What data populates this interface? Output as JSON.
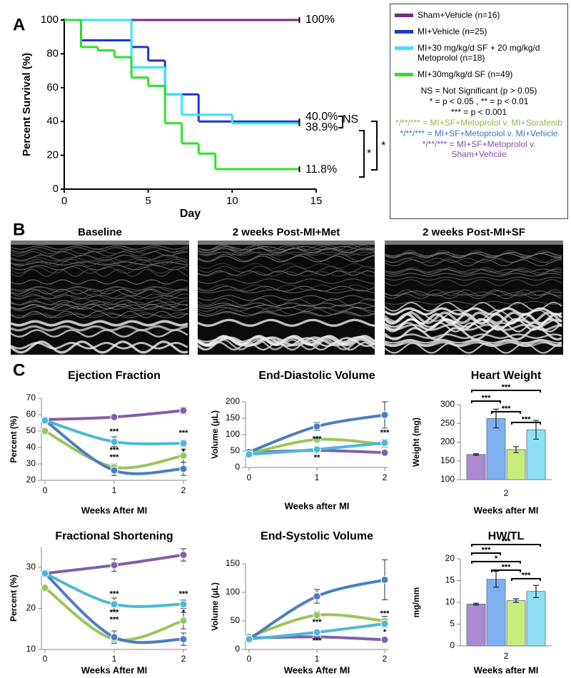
{
  "panel_labels": [
    "A",
    "B",
    "C"
  ],
  "echo_titles": [
    "Baseline",
    "2 weeks Post-MI+Met",
    "2 weeks Post-MI+SF"
  ],
  "legend": {
    "notes": [
      {
        "text": "NS = Not Significant (p > 0.05)",
        "color": "#000000"
      },
      {
        "text": "* = p < 0.05 , ** = p < 0.01",
        "color": "#000000"
      },
      {
        "text": "*** = p < 0.001",
        "color": "#000000"
      },
      {
        "text": "*/**/*** = MI+SF+Metoprolol v. MI+Sorafenib",
        "color": "#8ab84a"
      },
      {
        "text": "*/**/*** = MI+SF+Metoprolol v. MI+Vehicle",
        "color": "#3f73b8"
      },
      {
        "text": "*/**/*** = MI+SF+Metoprolol v. Sham+Vehcile",
        "color": "#7b4fa0"
      }
    ]
  },
  "chart_data": [
    {
      "type": "line",
      "step": "post",
      "xlabel": "Day",
      "ylabel": "Percent Survival (%)",
      "xlim": [
        0,
        15
      ],
      "xticks": [
        0,
        5,
        10,
        15
      ],
      "ylim": [
        0,
        100
      ],
      "yticks": [
        0,
        20,
        40,
        60,
        80,
        100
      ],
      "series": [
        {
          "name": "Sham+Vehicle (n=16)",
          "color": "#7a2a86",
          "x": [
            0,
            14
          ],
          "values": [
            100,
            100
          ]
        },
        {
          "name": "MI+Vehicle (n=25)",
          "color": "#1f35c8",
          "x": [
            0,
            1,
            4,
            5,
            6,
            8,
            14
          ],
          "values": [
            100,
            88,
            84,
            76,
            56,
            40,
            40
          ]
        },
        {
          "name": "MI+30 mg/kg/d SF + 20 mg/kg/d Metoprolol (n=18)",
          "color": "#33e6f5",
          "x": [
            0,
            4,
            6,
            7,
            10,
            14
          ],
          "values": [
            100,
            72,
            56,
            44,
            38.9,
            38.9
          ]
        },
        {
          "name": "MI+30mg/kg/d SF (n=49)",
          "color": "#2ee02e",
          "x": [
            0,
            1,
            2,
            3,
            4,
            5,
            6,
            7,
            8,
            9,
            14
          ],
          "values": [
            100,
            84,
            82,
            78,
            66,
            61,
            39,
            27,
            21,
            11.8,
            11.8
          ]
        }
      ],
      "annotations": [
        "100%",
        "40.0%",
        "38.9%",
        "11.8%",
        "NS",
        "*",
        "*"
      ]
    },
    {
      "type": "line",
      "title": "Ejection Fraction",
      "xlabel": "Weeks After MI",
      "ylabel": "Percent (%)",
      "x": [
        0,
        1,
        2
      ],
      "xlim": [
        0,
        2
      ],
      "xticks": [
        0,
        1,
        2
      ],
      "ylim": [
        20,
        70
      ],
      "yticks": [
        20,
        30,
        40,
        50,
        60,
        70
      ],
      "series": [
        {
          "color": "#8060a8",
          "values": [
            57,
            58.5,
            62.5
          ],
          "errors": [
            1,
            1.5,
            2
          ]
        },
        {
          "color": "#4a7ec0",
          "values": [
            56.5,
            26,
            27
          ],
          "errors": [
            1,
            3,
            4
          ]
        },
        {
          "color": "#4cb8d8",
          "values": [
            56.5,
            43.5,
            42.5
          ],
          "errors": [
            1,
            3,
            2
          ]
        },
        {
          "color": "#9cc45a",
          "values": [
            50,
            28,
            35
          ],
          "errors": [
            1,
            2,
            4
          ]
        }
      ],
      "significance": [
        {
          "x": 1,
          "stars": [
            {
              "label": "***",
              "color": "#7b4fa0"
            },
            {
              "label": "***",
              "color": "#8ab84a"
            },
            {
              "label": "***",
              "color": "#3f73b8"
            }
          ]
        },
        {
          "x": 2,
          "stars": [
            {
              "label": "***",
              "color": "#7b4fa0"
            },
            {
              "label": "*",
              "color": "#3f73b8"
            }
          ]
        }
      ]
    },
    {
      "type": "line",
      "title": "End-Diastolic Volume",
      "xlabel": "Weeks after MI",
      "ylabel": "Volume (µL)",
      "x": [
        0,
        1,
        2
      ],
      "xlim": [
        0,
        2
      ],
      "xticks": [
        0,
        1,
        2
      ],
      "ylim": [
        0,
        200
      ],
      "yticks": [
        0,
        50,
        100,
        150,
        200
      ],
      "series": [
        {
          "color": "#8060a8",
          "values": [
            45,
            52,
            45
          ],
          "errors": [
            2,
            3,
            3
          ]
        },
        {
          "color": "#4a7ec0",
          "values": [
            47,
            125,
            160
          ],
          "errors": [
            3,
            12,
            40
          ]
        },
        {
          "color": "#4cb8d8",
          "values": [
            40,
            55,
            75
          ],
          "errors": [
            2,
            5,
            10
          ]
        },
        {
          "color": "#9cc45a",
          "values": [
            42,
            85,
            70
          ],
          "errors": [
            2,
            8,
            10
          ]
        }
      ],
      "significance": [
        {
          "x": 1,
          "stars": [
            {
              "label": "***",
              "color": "#7b4fa0"
            },
            {
              "label": "**",
              "color": "#8ab84a"
            }
          ]
        },
        {
          "x": 2,
          "stars": [
            {
              "label": "***",
              "color": "#3f73b8"
            }
          ]
        }
      ]
    },
    {
      "type": "bar",
      "title": "Heart Weight",
      "xlabel": "Weeks after MI",
      "ylabel": "Weight (mg)",
      "categories": [
        "2"
      ],
      "ylim": [
        100,
        300
      ],
      "yticks": [
        100,
        150,
        200,
        250,
        300
      ],
      "series": [
        {
          "color": "#a98ad0",
          "values": [
            167
          ],
          "errors": [
            2
          ]
        },
        {
          "color": "#7fb0f0",
          "values": [
            263
          ],
          "errors": [
            25
          ]
        },
        {
          "color": "#c8ec7a",
          "values": [
            180
          ],
          "errors": [
            8
          ]
        },
        {
          "color": "#8ee0f4",
          "values": [
            233
          ],
          "errors": [
            25
          ]
        }
      ],
      "brackets": [
        {
          "between": [
            0,
            3
          ],
          "label": "***"
        },
        {
          "between": [
            0,
            1
          ],
          "label": "***"
        },
        {
          "between": [
            1,
            2
          ],
          "label": "***"
        },
        {
          "between": [
            2,
            3
          ],
          "label": "***"
        }
      ]
    },
    {
      "type": "line",
      "title": "Fractional Shortening",
      "xlabel": "Weeks After MI",
      "ylabel": "Percent (%)",
      "x": [
        0,
        1,
        2
      ],
      "xlim": [
        0,
        2
      ],
      "xticks": [
        0,
        1,
        2
      ],
      "ylim": [
        10,
        35
      ],
      "yticks": [
        10,
        20,
        30
      ],
      "series": [
        {
          "color": "#8060a8",
          "values": [
            28.5,
            30.5,
            33
          ],
          "errors": [
            0.5,
            1.5,
            1.5
          ]
        },
        {
          "color": "#4a7ec0",
          "values": [
            28.5,
            13,
            12.5
          ],
          "errors": [
            0.5,
            1.5,
            1.5
          ]
        },
        {
          "color": "#4cb8d8",
          "values": [
            28.5,
            21,
            21
          ],
          "errors": [
            0.5,
            1.5,
            1
          ]
        },
        {
          "color": "#9cc45a",
          "values": [
            25,
            12.5,
            17
          ],
          "errors": [
            0.5,
            1,
            2
          ]
        }
      ],
      "significance": [
        {
          "x": 1,
          "stars": [
            {
              "label": "***",
              "color": "#7b4fa0"
            },
            {
              "label": "***",
              "color": "#3f73b8"
            },
            {
              "label": "***",
              "color": "#8ab84a"
            }
          ]
        },
        {
          "x": 2,
          "stars": [
            {
              "label": "***",
              "color": "#7b4fa0"
            },
            {
              "label": "*",
              "color": "#3f73b8"
            }
          ]
        }
      ]
    },
    {
      "type": "line",
      "title": "End-Systolic Volume",
      "xlabel": "Weeks After MI",
      "ylabel": "Volume (µL)",
      "x": [
        0,
        1,
        2
      ],
      "xlim": [
        0,
        2
      ],
      "xticks": [
        0,
        1,
        2
      ],
      "ylim": [
        0,
        150
      ],
      "yticks": [
        0,
        50,
        100,
        150
      ],
      "series": [
        {
          "color": "#8060a8",
          "values": [
            20,
            22,
            17
          ],
          "errors": [
            2,
            3,
            2
          ]
        },
        {
          "color": "#4a7ec0",
          "values": [
            18,
            93,
            122
          ],
          "errors": [
            2,
            12,
            35
          ]
        },
        {
          "color": "#4cb8d8",
          "values": [
            18,
            30,
            45
          ],
          "errors": [
            2,
            3,
            6
          ]
        },
        {
          "color": "#9cc45a",
          "values": [
            22,
            60,
            50
          ],
          "errors": [
            2,
            6,
            8
          ]
        }
      ],
      "significance": [
        {
          "x": 1,
          "stars": [
            {
              "label": "***",
              "color": "#7b4fa0"
            },
            {
              "label": "***",
              "color": "#8ab84a"
            }
          ]
        },
        {
          "x": 2,
          "stars": [
            {
              "label": "***",
              "color": "#3f73b8"
            },
            {
              "label": "*",
              "color": "#7b4fa0"
            }
          ]
        }
      ]
    },
    {
      "type": "bar",
      "title": "HW/TL",
      "xlabel": "Weeks after MI",
      "ylabel": "mg/mm",
      "categories": [
        "2"
      ],
      "ylim": [
        0,
        20
      ],
      "yticks": [
        0,
        5,
        10,
        15,
        20
      ],
      "series": [
        {
          "color": "#a98ad0",
          "values": [
            9.6
          ],
          "errors": [
            0.2
          ]
        },
        {
          "color": "#7fb0f0",
          "values": [
            15.3
          ],
          "errors": [
            1.8
          ]
        },
        {
          "color": "#c8ec7a",
          "values": [
            10.4
          ],
          "errors": [
            0.4
          ]
        },
        {
          "color": "#8ee0f4",
          "values": [
            12.5
          ],
          "errors": [
            1.4
          ]
        }
      ],
      "brackets": [
        {
          "between": [
            0,
            3
          ],
          "label": "***"
        },
        {
          "between": [
            0,
            1
          ],
          "label": "***"
        },
        {
          "between": [
            0,
            2
          ],
          "label": "*"
        },
        {
          "between": [
            1,
            2
          ],
          "label": "***"
        },
        {
          "between": [
            2,
            3
          ],
          "label": "***"
        }
      ]
    }
  ]
}
